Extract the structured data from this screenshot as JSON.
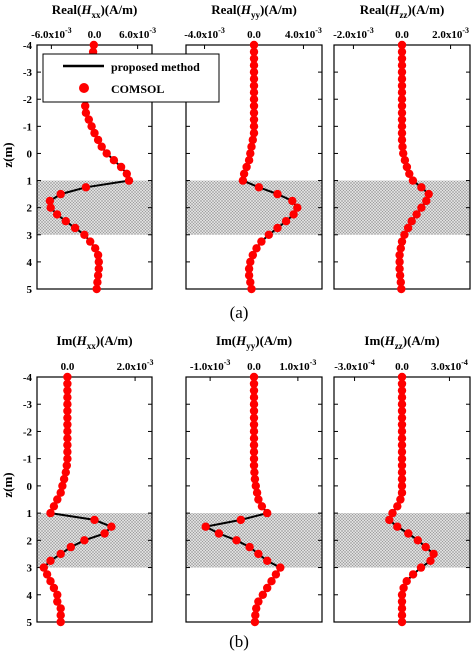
{
  "captions": [
    "(a)",
    "(b)"
  ],
  "ylabel": "z(m)",
  "legend": {
    "line_label": "proposed method",
    "marker_label": "COMSOL",
    "line_color": "#000000",
    "marker_color": "#ff0000"
  },
  "colors": {
    "shade": "#cccccc",
    "axis": "#000000"
  },
  "chart_data": [
    {
      "type": "line",
      "panel": "a",
      "title": {
        "prefix": "Real(",
        "var": "H",
        "sub": "xx",
        "suffix": ")(A/m)"
      },
      "xlim": [
        -0.008,
        0.008
      ],
      "ylim": [
        -4,
        5
      ],
      "y_inverted": true,
      "shaded_z": [
        1,
        3
      ],
      "xticks": [
        {
          "v": -0.006,
          "m": "-6.0x10",
          "e": "-3"
        },
        {
          "v": 0,
          "m": "0.0",
          "e": ""
        },
        {
          "v": 0.006,
          "m": "6.0x10",
          "e": "-3"
        }
      ],
      "yticks": [
        -4,
        -3,
        -2,
        -1,
        0,
        1,
        2,
        3,
        4,
        5
      ],
      "z": [
        -4,
        -3.75,
        -3.5,
        -3.25,
        -3,
        -2.75,
        -2.5,
        -2.25,
        -2,
        -1.75,
        -1.5,
        -1.25,
        -1,
        -0.75,
        -0.5,
        -0.25,
        0,
        0.25,
        0.5,
        0.75,
        1,
        1.25,
        1.5,
        1.75,
        2,
        2.25,
        2.5,
        2.75,
        3,
        3.25,
        3.5,
        3.75,
        4,
        4.25,
        4.5,
        4.75,
        5
      ],
      "series": [
        {
          "values": [
            -0.0001,
            -0.0002,
            -0.0003,
            -0.0004,
            -0.0005,
            -0.0006,
            -0.0008,
            -0.001,
            -0.0012,
            -0.0013,
            -0.0012,
            -0.0008,
            -0.0004,
            0,
            0.0005,
            0.001,
            0.0017,
            0.0027,
            0.0037,
            0.0045,
            0.0048,
            -0.0012,
            -0.0047,
            -0.0062,
            -0.0061,
            -0.0052,
            -0.004,
            -0.0027,
            -0.0014,
            -0.0006,
            0.0001,
            0.0005,
            0.0006,
            0.0006,
            0.0005,
            0.0004,
            0.0003
          ]
        }
      ]
    },
    {
      "type": "line",
      "panel": "a",
      "title": {
        "prefix": "Real(",
        "var": "H",
        "sub": "yy",
        "suffix": ")(A/m)"
      },
      "xlim": [
        -0.0055,
        0.0055
      ],
      "ylim": [
        -4,
        5
      ],
      "y_inverted": true,
      "shaded_z": [
        1,
        3
      ],
      "xticks": [
        {
          "v": -0.004,
          "m": "-4.0x10",
          "e": "-3"
        },
        {
          "v": 0,
          "m": "0.0",
          "e": ""
        },
        {
          "v": 0.004,
          "m": "4.0x10",
          "e": "-3"
        }
      ],
      "yticks": [
        -4,
        -3,
        -2,
        -1,
        0,
        1,
        2,
        3,
        4,
        5
      ],
      "z": [
        -4,
        -3.75,
        -3.5,
        -3.25,
        -3,
        -2.75,
        -2.5,
        -2.25,
        -2,
        -1.75,
        -1.5,
        -1.25,
        -1,
        -0.75,
        -0.5,
        -0.25,
        0,
        0.25,
        0.5,
        0.75,
        1,
        1.25,
        1.5,
        1.75,
        2,
        2.25,
        2.5,
        2.75,
        3,
        3.25,
        3.5,
        3.75,
        4,
        4.25,
        4.5,
        4.75,
        5
      ],
      "series": [
        {
          "values": [
            0,
            0,
            0,
            0,
            0,
            0,
            0,
            0,
            0,
            0,
            0,
            0,
            0,
            0,
            -0.0001,
            -0.0002,
            -0.0003,
            -0.0004,
            -0.0006,
            -0.0008,
            -0.0009,
            0.0004,
            0.0019,
            0.0031,
            0.0035,
            0.0032,
            0.0026,
            0.0019,
            0.0012,
            0.0006,
            0.0002,
            -0.0001,
            -0.0003,
            -0.0004,
            -0.0004,
            -0.0003,
            -0.0002
          ]
        }
      ]
    },
    {
      "type": "line",
      "panel": "a",
      "title": {
        "prefix": "Real(",
        "var": "H",
        "sub": "zz",
        "suffix": ")(A/m)"
      },
      "xlim": [
        -0.0028,
        0.0028
      ],
      "ylim": [
        -4,
        5
      ],
      "y_inverted": true,
      "shaded_z": [
        1,
        3
      ],
      "xticks": [
        {
          "v": -0.002,
          "m": "-2.0x10",
          "e": "-3"
        },
        {
          "v": 0,
          "m": "0.0",
          "e": ""
        },
        {
          "v": 0.002,
          "m": "2.0x10",
          "e": "-3"
        }
      ],
      "yticks": [
        -4,
        -3,
        -2,
        -1,
        0,
        1,
        2,
        3,
        4,
        5
      ],
      "z": [
        -4,
        -3.75,
        -3.5,
        -3.25,
        -3,
        -2.75,
        -2.5,
        -2.25,
        -2,
        -1.75,
        -1.5,
        -1.25,
        -1,
        -0.75,
        -0.5,
        -0.25,
        0,
        0.25,
        0.5,
        0.75,
        1,
        1.25,
        1.5,
        1.75,
        2,
        2.25,
        2.5,
        2.75,
        3,
        3.25,
        3.5,
        3.75,
        4,
        4.25,
        4.5,
        4.75,
        5
      ],
      "series": [
        {
          "values": [
            0,
            0,
            0,
            0,
            0,
            0,
            0,
            0,
            0,
            0,
            0,
            0,
            0,
            0,
            0,
            2e-05,
            5e-05,
            0.00012,
            0.0002,
            0.0003,
            0.00045,
            0.0008,
            0.0011,
            0.001,
            0.0008,
            0.0006,
            0.0004,
            0.00025,
            0.0001,
            0,
            -5e-05,
            -0.0001,
            -0.0001,
            -0.0001,
            -8e-05,
            -5e-05,
            -3e-05
          ]
        }
      ]
    },
    {
      "type": "line",
      "panel": "b",
      "title": {
        "prefix": "Im(",
        "var": "H",
        "sub": "xx",
        "suffix": ")(A/m)"
      },
      "xlim": [
        -0.0009,
        0.0025
      ],
      "ylim": [
        -4,
        5
      ],
      "y_inverted": true,
      "shaded_z": [
        1,
        3
      ],
      "xticks": [
        {
          "v": 0,
          "m": "0.0",
          "e": ""
        },
        {
          "v": 0.002,
          "m": "2.0x10",
          "e": "-3"
        }
      ],
      "yticks": [
        -4,
        -3,
        -2,
        -1,
        0,
        1,
        2,
        3,
        4,
        5
      ],
      "z": [
        -4,
        -3.75,
        -3.5,
        -3.25,
        -3,
        -2.75,
        -2.5,
        -2.25,
        -2,
        -1.75,
        -1.5,
        -1.25,
        -1,
        -0.75,
        -0.5,
        -0.25,
        0,
        0.25,
        0.5,
        0.75,
        1,
        1.25,
        1.5,
        1.75,
        2,
        2.25,
        2.5,
        2.75,
        3,
        3.25,
        3.5,
        3.75,
        4,
        4.25,
        4.5,
        4.75,
        5
      ],
      "series": [
        {
          "values": [
            0,
            0,
            0,
            0,
            0,
            0,
            0,
            0,
            0,
            0,
            0,
            0,
            0,
            -2e-05,
            -5e-05,
            -0.0001,
            -0.00015,
            -0.0002,
            -0.0003,
            -0.0004,
            -0.0005,
            0.0008,
            0.0013,
            0.0011,
            0.0005,
            0.0001,
            -0.0002,
            -0.0005,
            -0.0007,
            -0.0006,
            -0.0005,
            -0.0004,
            -0.0003,
            -0.0003,
            -0.0002,
            -0.0002,
            -0.0002
          ]
        }
      ]
    },
    {
      "type": "line",
      "panel": "b",
      "title": {
        "prefix": "Im(",
        "var": "H",
        "sub": "yy",
        "suffix": ")(A/m)"
      },
      "xlim": [
        -0.00155,
        0.00155
      ],
      "ylim": [
        -4,
        5
      ],
      "y_inverted": true,
      "shaded_z": [
        1,
        3
      ],
      "xticks": [
        {
          "v": -0.001,
          "m": "-1.0x10",
          "e": "-3"
        },
        {
          "v": 0,
          "m": "0.0",
          "e": ""
        },
        {
          "v": 0.001,
          "m": "1.0x10",
          "e": "-3"
        }
      ],
      "yticks": [
        -4,
        -3,
        -2,
        -1,
        0,
        1,
        2,
        3,
        4,
        5
      ],
      "z": [
        -4,
        -3.75,
        -3.5,
        -3.25,
        -3,
        -2.75,
        -2.5,
        -2.25,
        -2,
        -1.75,
        -1.5,
        -1.25,
        -1,
        -0.75,
        -0.5,
        -0.25,
        0,
        0.25,
        0.5,
        0.75,
        1,
        1.25,
        1.5,
        1.75,
        2,
        2.25,
        2.5,
        2.75,
        3,
        3.25,
        3.5,
        3.75,
        4,
        4.25,
        4.5,
        4.75,
        5
      ],
      "series": [
        {
          "values": [
            0,
            0,
            0,
            0,
            0,
            0,
            0,
            0,
            0,
            0,
            0,
            0,
            0,
            0,
            1e-05,
            2e-05,
            4e-05,
            7e-05,
            0.0001,
            0.00018,
            0.0003,
            -0.0003,
            -0.0011,
            -0.0008,
            -0.0004,
            -0.0001,
            0.0001,
            0.0003,
            0.0006,
            0.0005,
            0.0004,
            0.0003,
            0.0002,
            0.0001,
            5e-05,
            3e-05,
            2e-05
          ]
        }
      ]
    },
    {
      "type": "line",
      "panel": "b",
      "title": {
        "prefix": "Im(",
        "var": "H",
        "sub": "zz",
        "suffix": ")(A/m)"
      },
      "xlim": [
        -0.00043,
        0.00043
      ],
      "ylim": [
        -4,
        5
      ],
      "y_inverted": true,
      "shaded_z": [
        1,
        3
      ],
      "xticks": [
        {
          "v": -0.0003,
          "m": "-3.0x10",
          "e": "-4"
        },
        {
          "v": 0,
          "m": "0.0",
          "e": ""
        },
        {
          "v": 0.0003,
          "m": "3.0x10",
          "e": "-4"
        }
      ],
      "yticks": [
        -4,
        -3,
        -2,
        -1,
        0,
        1,
        2,
        3,
        4,
        5
      ],
      "z": [
        -4,
        -3.75,
        -3.5,
        -3.25,
        -3,
        -2.75,
        -2.5,
        -2.25,
        -2,
        -1.75,
        -1.5,
        -1.25,
        -1,
        -0.75,
        -0.5,
        -0.25,
        0,
        0.25,
        0.5,
        0.75,
        1,
        1.25,
        1.5,
        1.75,
        2,
        2.25,
        2.5,
        2.75,
        3,
        3.25,
        3.5,
        3.75,
        4,
        4.25,
        4.5,
        4.75,
        5
      ],
      "series": [
        {
          "values": [
            0,
            0,
            0,
            0,
            0,
            0,
            0,
            0,
            0,
            0,
            0,
            0,
            0,
            0,
            0,
            0,
            0,
            0,
            -1e-05,
            -3e-05,
            -6e-05,
            -8e-05,
            -3e-05,
            4e-05,
            0.0001,
            0.00015,
            0.0002,
            0.00018,
            0.00012,
            7e-05,
            3e-05,
            1e-05,
            0,
            0,
            0,
            0,
            0
          ]
        }
      ]
    }
  ]
}
